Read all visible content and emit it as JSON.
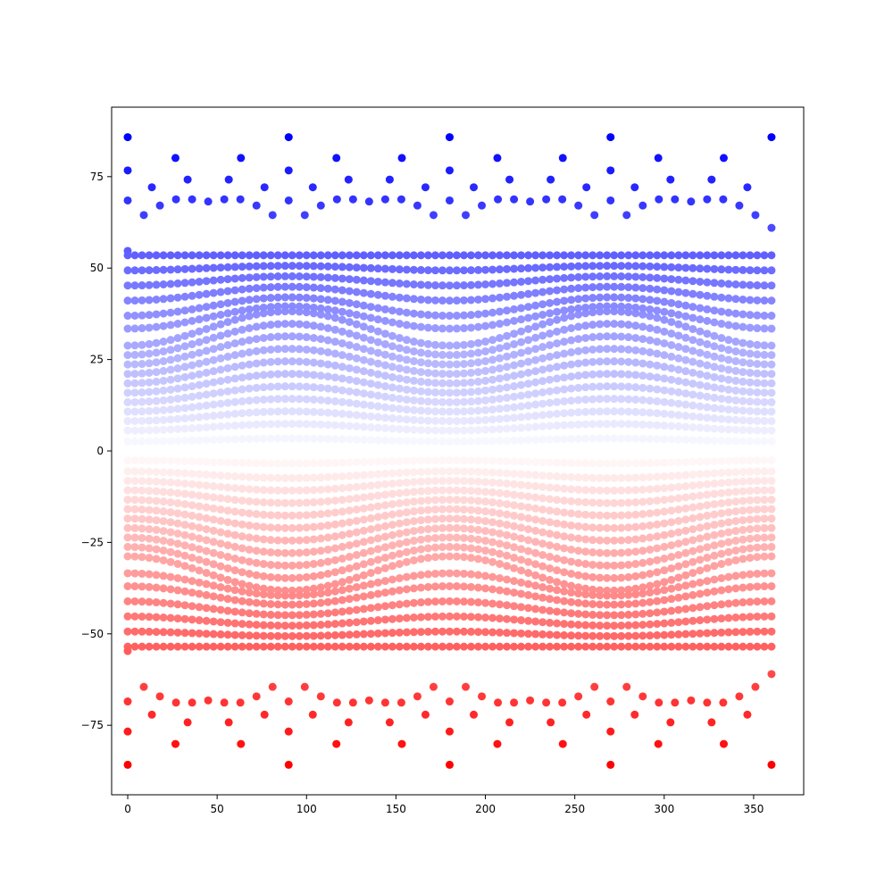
{
  "chart_data": {
    "type": "scatter",
    "title": "",
    "xlabel": "",
    "ylabel": "",
    "xlim": [
      -9,
      378
    ],
    "ylim": [
      -94,
      94
    ],
    "grid": false,
    "legend": "none",
    "xticks": [
      0,
      50,
      100,
      150,
      200,
      250,
      300,
      350
    ],
    "yticks": [
      -75,
      -50,
      -25,
      0,
      25,
      50,
      75
    ],
    "xtick_labels": [
      "0",
      "50",
      "100",
      "150",
      "200",
      "250",
      "300",
      "350"
    ],
    "ytick_labels": [
      "−75",
      "−50",
      "−25",
      "0",
      "25",
      "50",
      "75"
    ],
    "colormap": "bwr",
    "color_low": "#ff0000",
    "color_mid": "#ffffff",
    "color_high": "#0000ff",
    "points": [
      [
        0,
        85.8
      ],
      [
        90,
        85.8
      ],
      [
        180,
        85.8
      ],
      [
        270,
        85.8
      ],
      [
        360,
        85.8
      ],
      [
        0,
        76.7
      ],
      [
        90,
        76.7
      ],
      [
        180,
        76.7
      ],
      [
        270,
        76.7
      ],
      [
        26.7,
        80.1
      ],
      [
        63.3,
        80.1
      ],
      [
        116.7,
        80.1
      ],
      [
        153.3,
        80.1
      ],
      [
        206.7,
        80.1
      ],
      [
        243.3,
        80.1
      ],
      [
        296.7,
        80.1
      ],
      [
        333.3,
        80.1
      ],
      [
        0,
        68.5
      ],
      [
        13.5,
        72.1
      ],
      [
        33.5,
        74.2
      ],
      [
        56.5,
        74.2
      ],
      [
        76.5,
        72.1
      ],
      [
        103.5,
        72.1
      ],
      [
        123.5,
        74.2
      ],
      [
        146.5,
        74.2
      ],
      [
        166.5,
        72.1
      ],
      [
        193.5,
        72.1
      ],
      [
        213.5,
        74.2
      ],
      [
        236.5,
        74.2
      ],
      [
        256.5,
        72.1
      ],
      [
        283.5,
        72.1
      ],
      [
        303.5,
        74.2
      ],
      [
        326.5,
        74.2
      ],
      [
        346.5,
        72.1
      ],
      [
        0,
        54.7
      ],
      [
        9,
        64.5
      ],
      [
        18,
        67.1
      ],
      [
        27,
        68.8
      ],
      [
        36,
        68.8
      ],
      [
        45,
        68.2
      ],
      [
        54,
        68.8
      ],
      [
        63,
        68.8
      ],
      [
        72,
        67.1
      ],
      [
        81,
        64.5
      ],
      [
        90,
        68.5
      ],
      [
        99,
        64.5
      ],
      [
        108,
        67.1
      ],
      [
        117,
        68.8
      ],
      [
        126,
        68.8
      ],
      [
        135,
        68.2
      ],
      [
        144,
        68.8
      ],
      [
        153,
        68.8
      ],
      [
        162,
        67.1
      ],
      [
        171,
        64.5
      ],
      [
        180,
        68.5
      ],
      [
        189,
        64.5
      ],
      [
        198,
        67.1
      ],
      [
        207,
        68.8
      ],
      [
        216,
        68.8
      ],
      [
        225,
        68.2
      ],
      [
        234,
        68.8
      ],
      [
        243,
        68.8
      ],
      [
        252,
        67.1
      ],
      [
        261,
        64.5
      ],
      [
        270,
        68.5
      ],
      [
        279,
        64.5
      ],
      [
        288,
        67.1
      ],
      [
        297,
        68.8
      ],
      [
        306,
        68.8
      ],
      [
        315,
        68.2
      ],
      [
        324,
        68.8
      ],
      [
        333,
        68.8
      ],
      [
        342,
        67.1
      ],
      [
        351,
        64.5
      ],
      [
        360,
        61
      ]
    ]
  }
}
